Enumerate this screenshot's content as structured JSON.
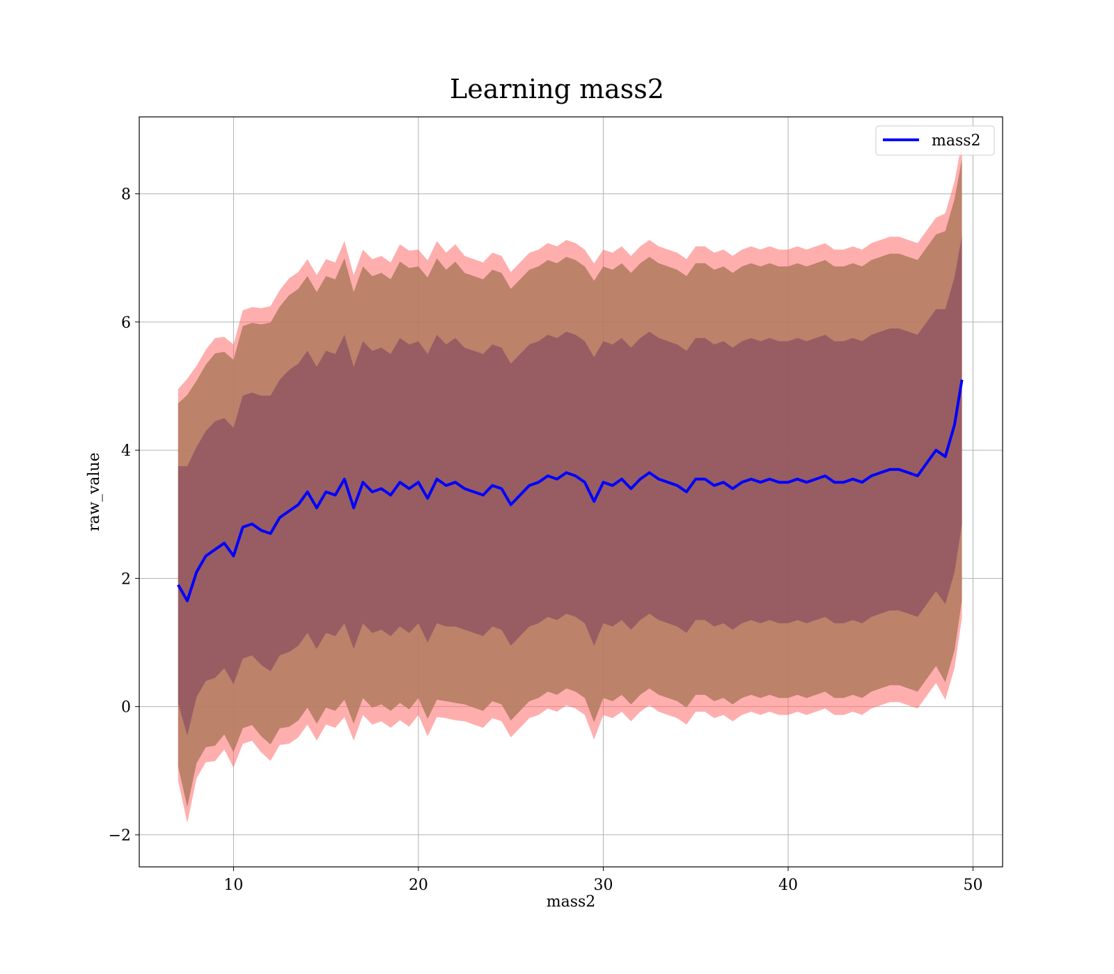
{
  "chart_data": {
    "type": "line",
    "title": "Learning mass2",
    "xlabel": "mass2",
    "ylabel": "raw_value",
    "xlim": [
      4.9,
      51.6
    ],
    "ylim": [
      -2.5,
      9.2
    ],
    "xticks": [
      10,
      20,
      30,
      40,
      50
    ],
    "yticks": [
      -2,
      0,
      2,
      4,
      6,
      8
    ],
    "grid": true,
    "legend_position": "top-right",
    "colors": {
      "line": "#0000ff",
      "band_outer": "#ff6b6b",
      "band_mid": "#b07a5e",
      "band_inner": "#7a3f5c",
      "grid": "#b0b0b0"
    },
    "series": [
      {
        "name": "mass2",
        "x": [
          7.0,
          7.3,
          7.5,
          8.0,
          8.5,
          9.0,
          9.5,
          10.0,
          10.5,
          11.0,
          11.5,
          12.0,
          12.5,
          13.0,
          13.5,
          14.0,
          14.5,
          15.0,
          15.5,
          16.0,
          16.5,
          17.0,
          17.5,
          18.0,
          18.5,
          19.0,
          19.5,
          20.0,
          20.5,
          21.0,
          21.5,
          22.0,
          22.5,
          23.0,
          23.5,
          24.0,
          24.5,
          25.0,
          25.5,
          26.0,
          26.5,
          27.0,
          27.5,
          28.0,
          28.5,
          29.0,
          29.5,
          30.0,
          30.5,
          31.0,
          31.5,
          32.0,
          32.5,
          33.0,
          33.5,
          34.0,
          34.5,
          35.0,
          35.5,
          36.0,
          36.5,
          37.0,
          37.5,
          38.0,
          38.5,
          39.0,
          39.5,
          40.0,
          40.5,
          41.0,
          41.5,
          42.0,
          42.5,
          43.0,
          43.5,
          44.0,
          44.5,
          45.0,
          45.5,
          46.0,
          46.5,
          47.0,
          47.5,
          48.0,
          48.5,
          49.0,
          49.4
        ],
        "y": [
          1.9,
          1.75,
          1.65,
          2.1,
          2.35,
          2.45,
          2.55,
          2.35,
          2.8,
          2.85,
          2.75,
          2.7,
          2.95,
          3.05,
          3.15,
          3.35,
          3.1,
          3.35,
          3.3,
          3.55,
          3.1,
          3.5,
          3.35,
          3.4,
          3.3,
          3.5,
          3.4,
          3.5,
          3.25,
          3.55,
          3.45,
          3.5,
          3.4,
          3.35,
          3.3,
          3.45,
          3.4,
          3.15,
          3.3,
          3.45,
          3.5,
          3.6,
          3.55,
          3.65,
          3.6,
          3.5,
          3.2,
          3.5,
          3.45,
          3.55,
          3.4,
          3.55,
          3.65,
          3.55,
          3.5,
          3.45,
          3.35,
          3.55,
          3.55,
          3.45,
          3.5,
          3.4,
          3.5,
          3.55,
          3.5,
          3.55,
          3.5,
          3.5,
          3.55,
          3.5,
          3.55,
          3.6,
          3.5,
          3.5,
          3.55,
          3.5,
          3.6,
          3.65,
          3.7,
          3.7,
          3.65,
          3.6,
          3.8,
          4.0,
          3.9,
          4.4,
          5.1
        ],
        "sigma": [
          1.85,
          2.0,
          2.1,
          1.95,
          1.95,
          2.0,
          1.95,
          2.0,
          2.05,
          2.05,
          2.1,
          2.15,
          2.15,
          2.2,
          2.2,
          2.2,
          2.2,
          2.2,
          2.2,
          2.25,
          2.2,
          2.2,
          2.2,
          2.2,
          2.2,
          2.25,
          2.25,
          2.2,
          2.25,
          2.25,
          2.2,
          2.25,
          2.2,
          2.2,
          2.2,
          2.2,
          2.2,
          2.2,
          2.2,
          2.2,
          2.2,
          2.2,
          2.2,
          2.2,
          2.2,
          2.2,
          2.25,
          2.2,
          2.2,
          2.2,
          2.2,
          2.2,
          2.2,
          2.2,
          2.2,
          2.2,
          2.2,
          2.2,
          2.2,
          2.2,
          2.2,
          2.2,
          2.2,
          2.2,
          2.2,
          2.2,
          2.2,
          2.2,
          2.2,
          2.2,
          2.2,
          2.2,
          2.2,
          2.2,
          2.2,
          2.2,
          2.2,
          2.2,
          2.2,
          2.2,
          2.2,
          2.2,
          2.2,
          2.2,
          2.3,
          2.3,
          2.25
        ]
      }
    ]
  }
}
